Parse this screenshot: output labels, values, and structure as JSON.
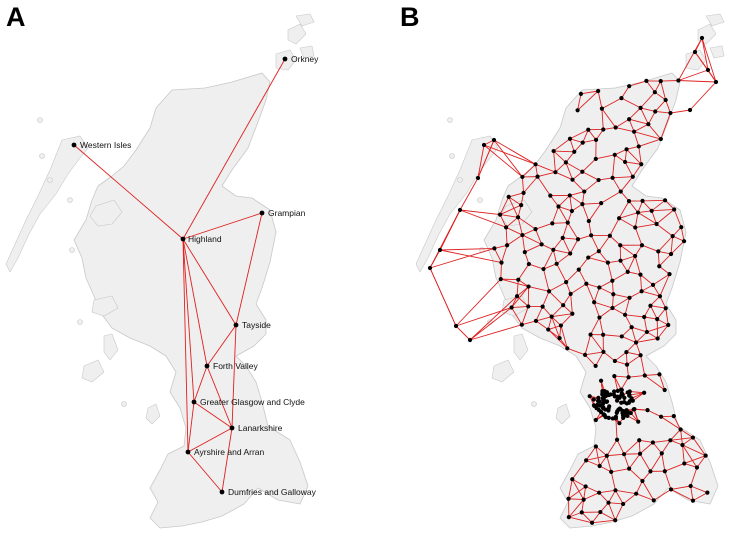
{
  "panels": [
    {
      "label": "A",
      "nodes": [
        {
          "id": "orkney",
          "label": "Orkney"
        },
        {
          "id": "western_isles",
          "label": "Western Isles"
        },
        {
          "id": "highland",
          "label": "Highland"
        },
        {
          "id": "grampian",
          "label": "Grampian"
        },
        {
          "id": "tayside",
          "label": "Tayside"
        },
        {
          "id": "forth_valley",
          "label": "Forth Valley"
        },
        {
          "id": "glasgow",
          "label": "Greater Glasgow and Clyde"
        },
        {
          "id": "lanarkshire",
          "label": "Lanarkshire"
        },
        {
          "id": "ayrshire",
          "label": "Ayrshire and Arran"
        },
        {
          "id": "dumfries",
          "label": "Dumfries and Galloway"
        }
      ],
      "edges": [
        [
          "orkney",
          "highland"
        ],
        [
          "western_isles",
          "highland"
        ],
        [
          "highland",
          "grampian"
        ],
        [
          "highland",
          "tayside"
        ],
        [
          "highland",
          "forth_valley"
        ],
        [
          "highland",
          "glasgow"
        ],
        [
          "highland",
          "ayrshire"
        ],
        [
          "grampian",
          "tayside"
        ],
        [
          "tayside",
          "forth_valley"
        ],
        [
          "tayside",
          "lanarkshire"
        ],
        [
          "forth_valley",
          "glasgow"
        ],
        [
          "forth_valley",
          "lanarkshire"
        ],
        [
          "glasgow",
          "lanarkshire"
        ],
        [
          "glasgow",
          "ayrshire"
        ],
        [
          "lanarkshire",
          "ayrshire"
        ],
        [
          "lanarkshire",
          "dumfries"
        ],
        [
          "ayrshire",
          "dumfries"
        ]
      ]
    },
    {
      "label": "B",
      "network": "dense triangulated network of locations across Scotland"
    }
  ],
  "colors": {
    "land": "#efefef",
    "coast": "#c8c8c8",
    "edge": "#e02020",
    "node": "#000000"
  }
}
